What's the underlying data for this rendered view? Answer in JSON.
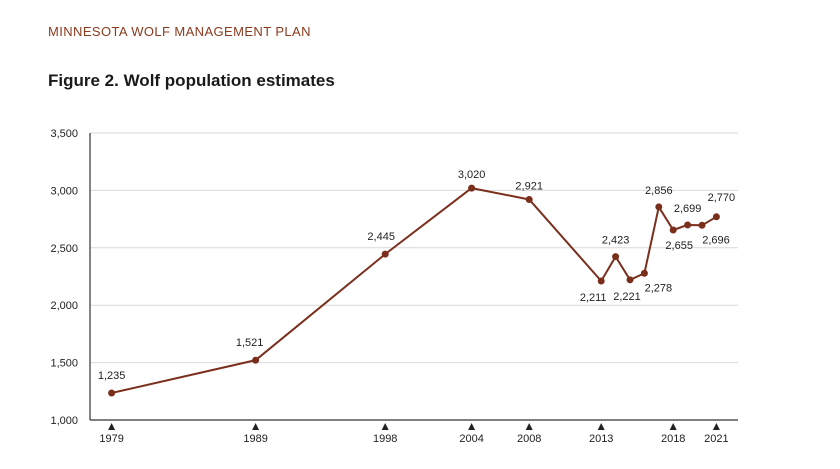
{
  "header": {
    "title": "MINNESOTA WOLF MANAGEMENT PLAN"
  },
  "figure": {
    "title": "Figure 2. Wolf population estimates"
  },
  "chart_data": {
    "type": "line",
    "title": "Figure 2. Wolf population estimates",
    "xlabel": "",
    "ylabel": "",
    "ylim": [
      1000,
      3500
    ],
    "xlim": [
      1977.5,
      2022.5
    ],
    "yticks": [
      1000,
      1500,
      2000,
      2500,
      3000,
      3500
    ],
    "ytick_labels": [
      "1,000",
      "1,500",
      "2,000",
      "2,500",
      "3,000",
      "3,500"
    ],
    "xticks": [
      1979,
      1989,
      1998,
      2004,
      2008,
      2013,
      2018,
      2021
    ],
    "xtick_labels": [
      "1979",
      "1989",
      "1998",
      "2004",
      "2008",
      "2013",
      "2018",
      "2021"
    ],
    "grid": true,
    "series_color": "#7a2e1c",
    "series": [
      {
        "name": "Wolf population estimate",
        "x": [
          1979,
          1989,
          1998,
          2004,
          2008,
          2013,
          2014,
          2015,
          2016,
          2017,
          2018,
          2019,
          2020,
          2021
        ],
        "values": [
          1235,
          1521,
          2445,
          3020,
          2921,
          2211,
          2423,
          2221,
          2278,
          2856,
          2655,
          2699,
          2696,
          2770
        ],
        "labels": [
          "1,235",
          "1,521",
          "2,445",
          "3,020",
          "2,921",
          "2,211",
          "2,423",
          "2,221",
          "2,278",
          "2,856",
          "2,655",
          "2,699",
          "2,696",
          "2,770"
        ]
      }
    ]
  }
}
